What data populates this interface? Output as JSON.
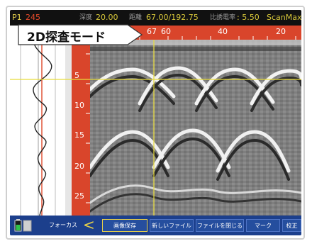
{
  "status_bar": {
    "probe_id": "P1",
    "value_1": "245",
    "value_2_label": "深度",
    "value_2": "20.00",
    "value_3_label": "距離",
    "value_3": "67.00/192.75",
    "permittivity_label": "比誘電率",
    "permittivity_value": ": 5.50",
    "app_name": "ScanMax"
  },
  "mode_label": "2D探査モード",
  "depth_ruler": {
    "ticks": [
      "5",
      "10",
      "15",
      "20",
      "25"
    ]
  },
  "distance_ruler": {
    "ticks": [
      "67",
      "60",
      "40",
      "20"
    ]
  },
  "bottom_bar": {
    "focus_label": "フォーカス",
    "focus_arrow": "<",
    "save_image": "画像保存",
    "new_file": "新しいファイル",
    "close_file": "ファイルを閉じる",
    "mark": "マーク",
    "calibrate": "校正"
  },
  "colors": {
    "ruler": "#d9452b",
    "bottom_bar": "#1c3f8c",
    "status_text": "#d8c83a",
    "cursor": "#e8dc3a"
  }
}
